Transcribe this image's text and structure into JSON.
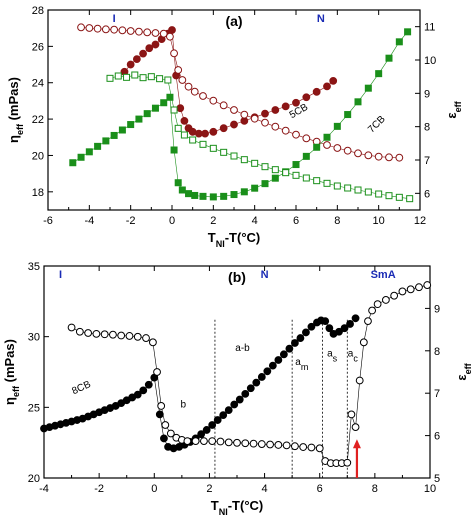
{
  "chart_data": [
    {
      "id": "a",
      "type": "scatter",
      "panel_label": "(a)",
      "xlabel": "T",
      "xlabel_sub": "NI",
      "xlabel_tail": "-T(°C)",
      "ylabel_left": "η",
      "ylabel_left_sub": "eff",
      "ylabel_left_tail": " (mPas)",
      "ylabel_right": "ε",
      "ylabel_right_sub": "eff",
      "xlim": [
        -6,
        12
      ],
      "ylim_left": [
        17,
        28
      ],
      "ylim_right": [
        5.5,
        11.5
      ],
      "xticks": [
        -6,
        -4,
        -2,
        0,
        2,
        4,
        6,
        8,
        10,
        12
      ],
      "yticks_left": [
        18,
        20,
        22,
        24,
        26,
        28
      ],
      "yticks_right": [
        6,
        7,
        8,
        9,
        10,
        11
      ],
      "phase_labels": [
        {
          "text": "I",
          "x": -2.8
        },
        {
          "text": "N",
          "x": 7.2
        }
      ],
      "series_labels": [
        {
          "text": "5CB",
          "x": 6.2,
          "y_left": 22.3,
          "color": "#8b1515",
          "rotate": -30
        },
        {
          "text": "7CB",
          "x": 10.0,
          "y_left": 21.6,
          "color": "#1a8f1a",
          "rotate": -45
        }
      ],
      "series": [
        {
          "name": "5CB viscosity",
          "axis": "left",
          "marker": "circle",
          "filled": true,
          "color": "#8b1515",
          "x": [
            -2.3,
            -2.0,
            -1.7,
            -1.4,
            -1.1,
            -0.8,
            -0.5,
            -0.2,
            0.0,
            0.2,
            0.4,
            0.6,
            0.8,
            1.0,
            1.3,
            1.6,
            2.0,
            2.5,
            3.0,
            3.5,
            4.0,
            4.5,
            5.0,
            5.5,
            6.0,
            6.5,
            7.0,
            7.5,
            7.8
          ],
          "y": [
            24.6,
            25.0,
            25.3,
            25.6,
            25.9,
            26.1,
            26.4,
            26.7,
            26.9,
            24.4,
            22.6,
            21.9,
            21.5,
            21.3,
            21.2,
            21.2,
            21.3,
            21.5,
            21.7,
            21.9,
            22.1,
            22.3,
            22.5,
            22.7,
            22.9,
            23.2,
            23.5,
            23.8,
            24.1
          ]
        },
        {
          "name": "5CB dielectric",
          "axis": "right",
          "marker": "circle",
          "filled": false,
          "color": "#8b1515",
          "x": [
            -4.4,
            -4.0,
            -3.6,
            -3.2,
            -2.8,
            -2.4,
            -2.0,
            -1.6,
            -1.2,
            -0.8,
            -0.4,
            -0.1,
            0.1,
            0.3,
            0.5,
            0.8,
            1.1,
            1.5,
            2.0,
            2.5,
            3.0,
            3.5,
            4.0,
            4.5,
            5.0,
            5.5,
            6.0,
            6.5,
            7.0,
            7.5,
            8.0,
            8.5,
            9.0,
            9.5,
            10.0,
            10.5,
            11.0
          ],
          "y": [
            10.98,
            10.96,
            10.94,
            10.92,
            10.91,
            10.89,
            10.87,
            10.85,
            10.83,
            10.81,
            10.79,
            10.7,
            10.2,
            9.7,
            9.4,
            9.2,
            9.05,
            8.92,
            8.78,
            8.64,
            8.5,
            8.36,
            8.24,
            8.12,
            8.0,
            7.88,
            7.76,
            7.65,
            7.55,
            7.45,
            7.36,
            7.28,
            7.2,
            7.14,
            7.1,
            7.08,
            7.07
          ]
        },
        {
          "name": "7CB viscosity",
          "axis": "left",
          "marker": "square",
          "filled": true,
          "color": "#1a8f1a",
          "x": [
            -4.8,
            -4.4,
            -4.0,
            -3.6,
            -3.2,
            -2.8,
            -2.4,
            -2.0,
            -1.6,
            -1.2,
            -0.8,
            -0.4,
            -0.1,
            0.1,
            0.3,
            0.5,
            0.8,
            1.1,
            1.5,
            2.0,
            2.5,
            3.0,
            3.5,
            4.0,
            4.5,
            5.0,
            5.5,
            6.0,
            6.5,
            7.0,
            7.5,
            8.0,
            8.5,
            9.0,
            9.5,
            10.0,
            10.5,
            11.0,
            11.4
          ],
          "y": [
            19.6,
            19.9,
            20.2,
            20.5,
            20.8,
            21.1,
            21.4,
            21.7,
            22.0,
            22.3,
            22.6,
            22.9,
            23.2,
            20.3,
            18.5,
            18.1,
            17.9,
            17.8,
            17.75,
            17.72,
            17.75,
            17.85,
            18.0,
            18.2,
            18.45,
            18.75,
            19.1,
            19.5,
            19.95,
            20.45,
            21.0,
            21.6,
            22.25,
            22.95,
            23.7,
            24.5,
            25.35,
            26.25,
            26.8
          ]
        },
        {
          "name": "7CB dielectric",
          "axis": "right",
          "marker": "square",
          "filled": false,
          "color": "#1a8f1a",
          "x": [
            -3.0,
            -2.6,
            -2.2,
            -1.8,
            -1.4,
            -1.0,
            -0.6,
            -0.2,
            0.1,
            0.3,
            0.6,
            1.0,
            1.5,
            2.0,
            2.5,
            3.0,
            3.5,
            4.0,
            4.5,
            5.0,
            5.5,
            6.0,
            6.5,
            7.0,
            7.5,
            8.0,
            8.5,
            9.0,
            9.5,
            10.0,
            10.5,
            11.0,
            11.5
          ],
          "y": [
            9.45,
            9.52,
            9.48,
            9.55,
            9.47,
            9.5,
            9.44,
            9.4,
            8.5,
            7.95,
            7.75,
            7.6,
            7.47,
            7.35,
            7.23,
            7.12,
            7.01,
            6.9,
            6.8,
            6.71,
            6.62,
            6.54,
            6.46,
            6.38,
            6.3,
            6.22,
            6.16,
            6.1,
            6.04,
            5.98,
            5.93,
            5.88,
            5.84
          ]
        }
      ]
    },
    {
      "id": "b",
      "type": "scatter",
      "panel_label": "(b)",
      "xlabel": "T",
      "xlabel_sub": "NI",
      "xlabel_tail": "-T(°C)",
      "ylabel_left": "η",
      "ylabel_left_sub": "eff",
      "ylabel_left_tail": " (mPas)",
      "ylabel_right": "ε",
      "ylabel_right_sub": "eff",
      "xlim": [
        -4,
        10
      ],
      "ylim_left": [
        20,
        35
      ],
      "ylim_right": [
        5,
        10
      ],
      "xticks": [
        -4,
        -2,
        0,
        2,
        4,
        6,
        8,
        10
      ],
      "yticks_left": [
        20,
        25,
        30,
        35
      ],
      "yticks_right": [
        5,
        6,
        7,
        8,
        9
      ],
      "phase_labels": [
        {
          "text": "I",
          "x": -3.4
        },
        {
          "text": "N",
          "x": 4.0
        },
        {
          "text": "SmA",
          "x": 8.3
        }
      ],
      "region_lines": [
        2.2,
        5.0,
        6.1,
        7.0
      ],
      "annotations": [
        {
          "text": "8CB",
          "x": -2.6,
          "y_left": 26.2,
          "rotate": -25
        },
        {
          "text": "b",
          "x": 1.05,
          "y_left": 25.0,
          "rotate": 0
        },
        {
          "text": "a-b",
          "x": 3.2,
          "y_left": 29.0,
          "rotate": 0
        },
        {
          "text": "a",
          "x": 5.35,
          "y_left": 28.0,
          "rotate": 0,
          "sub": "m"
        },
        {
          "text": "a",
          "x": 6.45,
          "y_left": 28.6,
          "rotate": 0,
          "sub": "s"
        },
        {
          "text": "a",
          "x": 7.2,
          "y_left": 28.6,
          "rotate": 0,
          "sub": "c"
        }
      ],
      "arrow": {
        "x": 7.35,
        "y_left_from": 20.0,
        "y_left_to": 22.6,
        "color": "#e02020"
      },
      "series": [
        {
          "name": "8CB viscosity",
          "axis": "left",
          "marker": "circle",
          "filled": true,
          "color": "#000000",
          "x": [
            -4.0,
            -3.8,
            -3.6,
            -3.4,
            -3.2,
            -3.0,
            -2.8,
            -2.6,
            -2.4,
            -2.2,
            -2.0,
            -1.8,
            -1.6,
            -1.4,
            -1.2,
            -1.0,
            -0.8,
            -0.6,
            -0.4,
            -0.2,
            0.0,
            0.2,
            0.35,
            0.5,
            0.7,
            0.9,
            1.1,
            1.3,
            1.5,
            1.7,
            1.9,
            2.1,
            2.3,
            2.5,
            2.7,
            2.9,
            3.1,
            3.3,
            3.5,
            3.7,
            3.9,
            4.1,
            4.3,
            4.5,
            4.7,
            4.9,
            5.1,
            5.3,
            5.5,
            5.7,
            5.9,
            6.05,
            6.2,
            6.35,
            6.5,
            6.7,
            6.9,
            7.1,
            7.3
          ],
          "y": [
            23.5,
            23.6,
            23.7,
            23.8,
            23.9,
            24.0,
            24.1,
            24.2,
            24.35,
            24.5,
            24.65,
            24.8,
            24.95,
            25.1,
            25.3,
            25.5,
            25.7,
            25.9,
            26.2,
            26.6,
            27.1,
            24.5,
            22.8,
            22.2,
            22.1,
            22.2,
            22.35,
            22.55,
            22.8,
            23.1,
            23.4,
            23.75,
            24.1,
            24.45,
            24.8,
            25.2,
            25.55,
            25.95,
            26.35,
            26.75,
            27.15,
            27.55,
            27.95,
            28.35,
            28.75,
            29.15,
            29.55,
            29.9,
            30.3,
            30.7,
            31.0,
            31.15,
            31.1,
            30.6,
            30.2,
            30.35,
            30.6,
            30.9,
            31.3
          ]
        },
        {
          "name": "8CB dielectric",
          "axis": "right",
          "marker": "circle",
          "filled": false,
          "color": "#000000",
          "x": [
            -3.0,
            -2.7,
            -2.4,
            -2.1,
            -1.8,
            -1.5,
            -1.2,
            -0.9,
            -0.6,
            -0.3,
            -0.05,
            0.1,
            0.25,
            0.4,
            0.6,
            0.8,
            1.0,
            1.2,
            1.5,
            1.8,
            2.1,
            2.4,
            2.7,
            3.0,
            3.3,
            3.6,
            3.9,
            4.2,
            4.5,
            4.8,
            5.1,
            5.4,
            5.7,
            6.0,
            6.2,
            6.4,
            6.6,
            6.8,
            7.0,
            7.15,
            7.3,
            7.45,
            7.6,
            7.75,
            7.9,
            8.1,
            8.4,
            8.7,
            9.0,
            9.3,
            9.6,
            9.9
          ],
          "y": [
            8.55,
            8.45,
            8.42,
            8.4,
            8.39,
            8.38,
            8.36,
            8.35,
            8.33,
            8.3,
            8.2,
            7.5,
            6.7,
            6.25,
            6.05,
            5.95,
            5.9,
            5.87,
            5.87,
            5.87,
            5.87,
            5.86,
            5.84,
            5.83,
            5.82,
            5.81,
            5.8,
            5.79,
            5.78,
            5.77,
            5.75,
            5.73,
            5.72,
            5.7,
            5.4,
            5.35,
            5.35,
            5.35,
            5.36,
            6.5,
            6.2,
            7.3,
            8.2,
            8.7,
            8.95,
            9.1,
            9.2,
            9.3,
            9.4,
            9.45,
            9.5,
            9.55
          ]
        }
      ]
    }
  ]
}
